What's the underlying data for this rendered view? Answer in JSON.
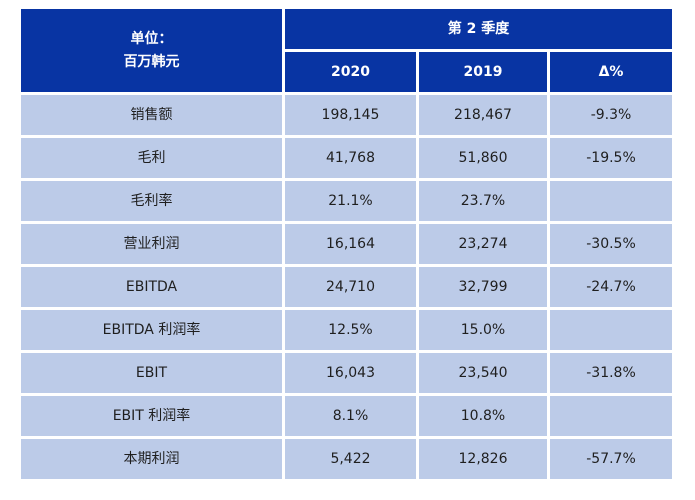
{
  "colors": {
    "header_bg": "#0834a3",
    "row_bg": "#bccbe8",
    "header_text": "#ffffff",
    "body_text": "#1f1f1f"
  },
  "table": {
    "unit_header_line1": "单位：",
    "unit_header_line2": "百万韩元",
    "quarter_header": "第 2 季度",
    "columns": [
      "2020",
      "2019",
      "Δ%"
    ],
    "rows": [
      {
        "label": "销售额",
        "y2020": "198,145",
        "y2019": "218,467",
        "delta": "-9.3%"
      },
      {
        "label": "毛利",
        "y2020": "41,768",
        "y2019": "51,860",
        "delta": "-19.5%"
      },
      {
        "label": "毛利率",
        "y2020": "21.1%",
        "y2019": "23.7%",
        "delta": ""
      },
      {
        "label": "营业利润",
        "y2020": "16,164",
        "y2019": "23,274",
        "delta": "-30.5%"
      },
      {
        "label": "EBITDA",
        "y2020": "24,710",
        "y2019": "32,799",
        "delta": "-24.7%"
      },
      {
        "label": "EBITDA 利润率",
        "y2020": "12.5%",
        "y2019": "15.0%",
        "delta": ""
      },
      {
        "label": "EBIT",
        "y2020": "16,043",
        "y2019": "23,540",
        "delta": "-31.8%"
      },
      {
        "label": "EBIT 利润率",
        "y2020": "8.1%",
        "y2019": "10.8%",
        "delta": ""
      },
      {
        "label": "本期利润",
        "y2020": "5,422",
        "y2019": "12,826",
        "delta": "-57.7%"
      }
    ]
  }
}
